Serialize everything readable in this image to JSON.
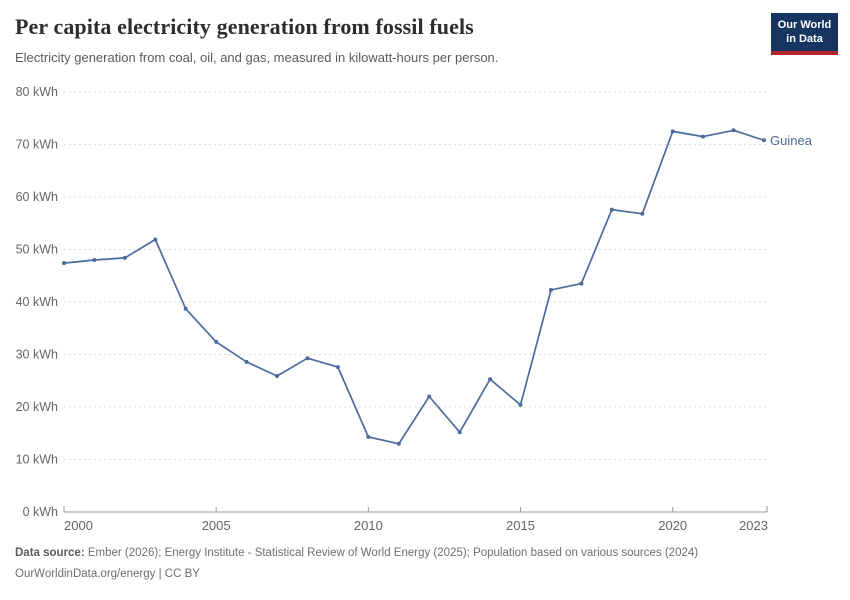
{
  "header": {
    "title": "Per capita electricity generation from fossil fuels",
    "subtitle": "Electricity generation from coal, oil, and gas, measured in kilowatt-hours per person."
  },
  "logo": {
    "line1": "Our World",
    "line2": "in Data",
    "bg_color": "#163561",
    "bar_color": "#b0232f"
  },
  "footer": {
    "source_label": "Data source:",
    "source_text": " Ember (2026); Energy Institute - Statistical Review of World Energy (2025); Population based on various sources (2024)",
    "license_line": "OurWorldinData.org/energy | CC BY"
  },
  "chart_data": {
    "type": "line",
    "title": "Per capita electricity generation from fossil fuels",
    "xlabel": "",
    "ylabel": "",
    "y_tick_suffix": " kWh",
    "ylim": [
      0,
      80
    ],
    "xlim": [
      2000,
      2023
    ],
    "yticks": [
      0,
      10,
      20,
      30,
      40,
      50,
      60,
      70,
      80
    ],
    "xticks": [
      2000,
      2005,
      2010,
      2015,
      2020,
      2023
    ],
    "grid": "horizontal-dashed",
    "legend_position": "end-of-line-label",
    "x": [
      2000,
      2001,
      2002,
      2003,
      2004,
      2005,
      2006,
      2007,
      2008,
      2009,
      2010,
      2011,
      2012,
      2013,
      2014,
      2015,
      2016,
      2017,
      2018,
      2019,
      2020,
      2021,
      2022,
      2023
    ],
    "series": [
      {
        "name": "Guinea",
        "color": "#4C6A9C",
        "values": [
          47.4,
          48.0,
          48.4,
          51.9,
          38.7,
          32.4,
          28.6,
          25.9,
          29.3,
          27.6,
          14.3,
          13.0,
          22.0,
          15.2,
          25.3,
          20.4,
          42.3,
          43.5,
          57.6,
          56.8,
          72.5,
          71.5,
          72.7,
          70.8
        ]
      }
    ],
    "axis_color": "#999999",
    "grid_color": "#dddddd",
    "tick_label_color": "#666666"
  }
}
